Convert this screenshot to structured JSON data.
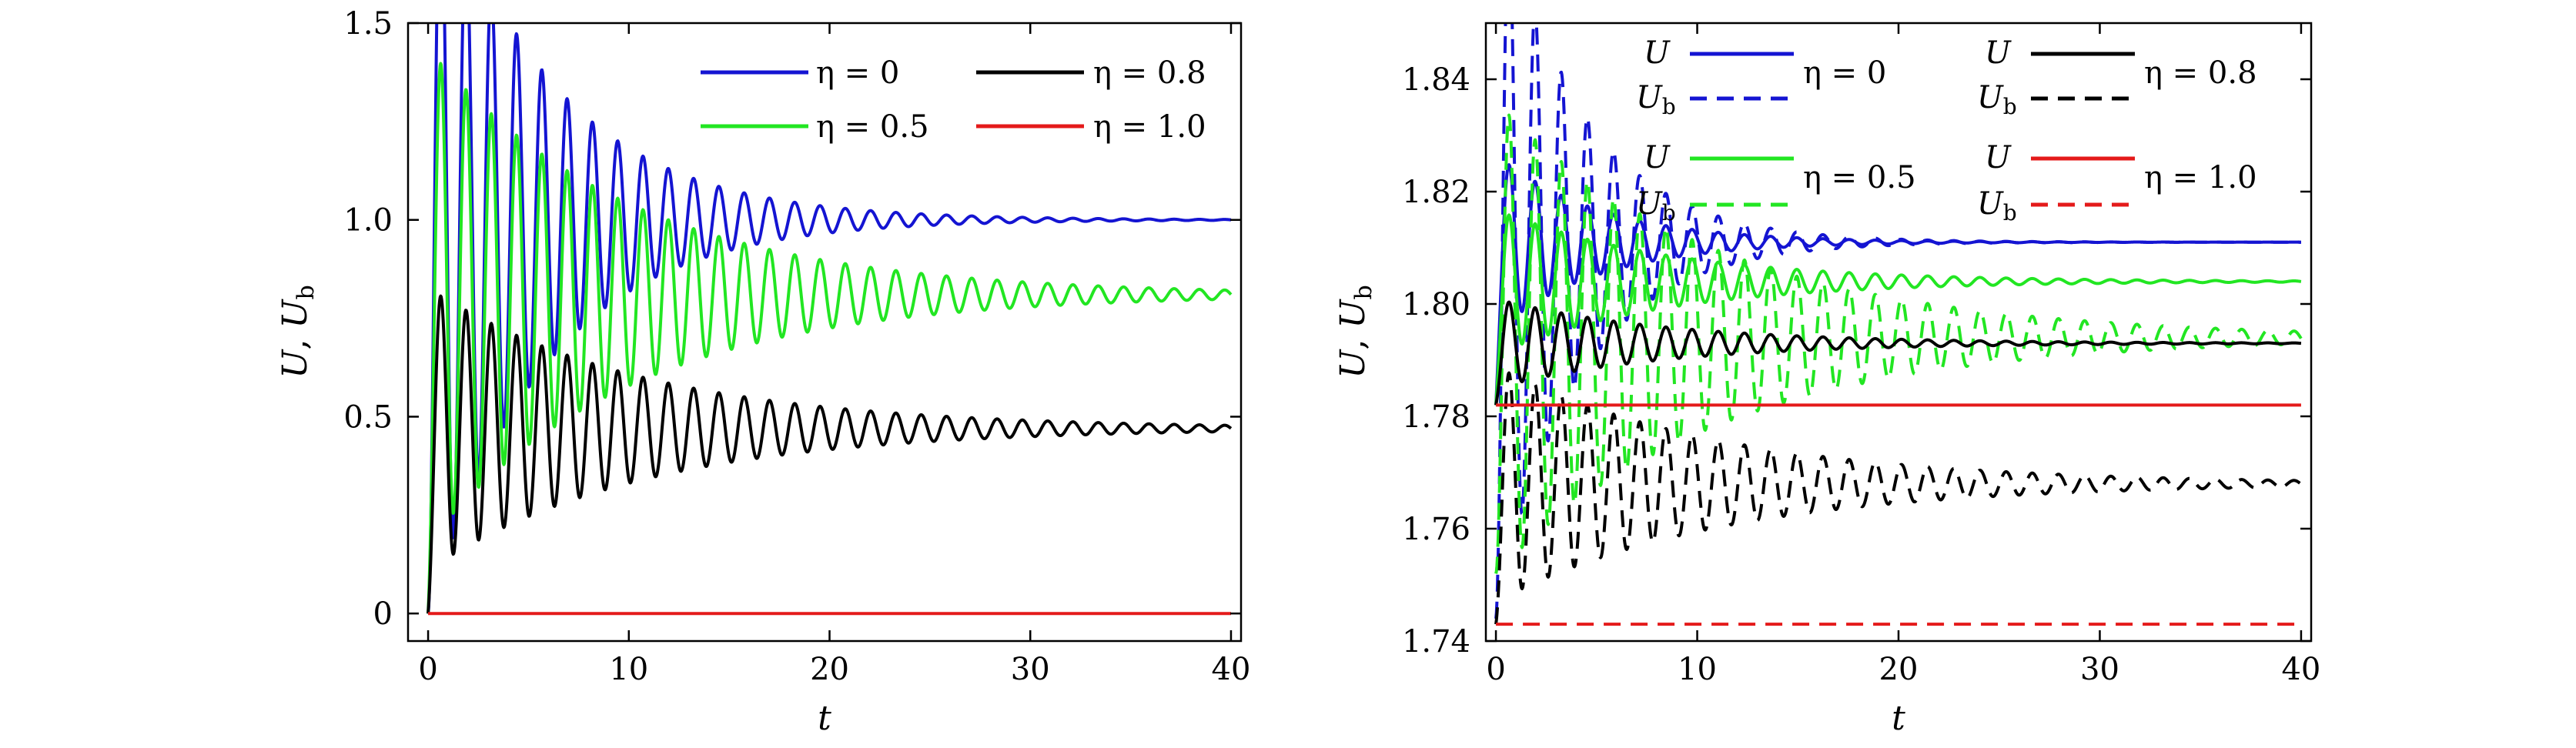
{
  "chart_data": [
    {
      "type": "line",
      "xlabel": "t",
      "ylabel": "U, U_b",
      "xlim": [
        -1,
        40.5
      ],
      "ylim": [
        -0.07,
        1.5
      ],
      "xticks": [
        "0",
        "10",
        "20",
        "30",
        "40"
      ],
      "yticks": [
        "0",
        "0.5",
        "1.0",
        "1.5"
      ],
      "x_tick_values": [
        0,
        10,
        20,
        30,
        40
      ],
      "y_tick_values": [
        0,
        0.5,
        1.0,
        1.5
      ],
      "legend": {
        "placement": "top-right",
        "columns": 2
      },
      "series": [
        {
          "name": "η = 0",
          "color": "#1414d2",
          "style": "solid",
          "start": 0,
          "final": 1.0,
          "first_min": 0.0,
          "decay": 0.17,
          "period": 1.26
        },
        {
          "name": "η = 0.5",
          "color": "#22e622",
          "style": "solid",
          "start": 0,
          "final": 0.81,
          "first_min": 0.18,
          "decay": 0.1,
          "period": 1.26
        },
        {
          "name": "η = 0.8",
          "color": "#000000",
          "style": "solid",
          "start": 0,
          "final": 0.47,
          "first_min": 0.11,
          "decay": 0.095,
          "period": 1.26
        },
        {
          "name": "η = 1.0",
          "color": "#e41a1a",
          "style": "solid",
          "start": 0,
          "final": 0.0,
          "first_min": 0.0,
          "decay": 0.2,
          "period": 1.26
        }
      ]
    },
    {
      "type": "line",
      "xlabel": "t",
      "ylabel": "U, U_b",
      "xlim": [
        -0.5,
        40.5
      ],
      "ylim": [
        1.74,
        1.85
      ],
      "xticks": [
        "0",
        "10",
        "20",
        "30",
        "40"
      ],
      "yticks": [
        "1.74",
        "1.76",
        "1.78",
        "1.80",
        "1.82",
        "1.84"
      ],
      "x_tick_values": [
        0,
        10,
        20,
        30,
        40
      ],
      "y_tick_values": [
        1.74,
        1.76,
        1.78,
        1.8,
        1.82,
        1.84
      ],
      "legend": {
        "placement": "top-right",
        "columns": 2
      },
      "series": [
        {
          "name": "U, η = 0",
          "color": "#1414d2",
          "style": "solid",
          "start": 1.782,
          "final": 1.811,
          "first_min": 1.795,
          "decay": 0.2,
          "period": 1.3
        },
        {
          "name": "U_b, η = 0",
          "color": "#1414d2",
          "style": "dashed",
          "start": 1.744,
          "final": 1.811,
          "first_min": 1.745,
          "decay": 0.24,
          "period": 1.3
        },
        {
          "name": "U, η = 0.5",
          "color": "#22e622",
          "style": "solid",
          "start": 1.782,
          "final": 1.804,
          "first_min": 1.791,
          "decay": 0.12,
          "period": 1.3
        },
        {
          "name": "U_b, η = 0.5",
          "color": "#22e622",
          "style": "dashed",
          "start": 1.752,
          "final": 1.794,
          "first_min": 1.752,
          "decay": 0.09,
          "period": 1.3
        },
        {
          "name": "U, η = 0.8",
          "color": "#000000",
          "style": "solid",
          "start": 1.782,
          "final": 1.793,
          "first_min": 1.785,
          "decay": 0.12,
          "period": 1.3
        },
        {
          "name": "U_b, η = 0.8",
          "color": "#000000",
          "style": "dashed",
          "start": 1.743,
          "final": 1.768,
          "first_min": 1.747,
          "decay": 0.09,
          "period": 1.3
        },
        {
          "name": "U, η = 1.0",
          "color": "#e41a1a",
          "style": "solid",
          "start": 1.782,
          "final": 1.782,
          "first_min": 1.782,
          "decay": 0.2,
          "period": 1.3
        },
        {
          "name": "U_b, η = 1.0",
          "color": "#e41a1a",
          "style": "dashed",
          "start": 1.743,
          "final": 1.743,
          "first_min": 1.743,
          "decay": 0.2,
          "period": 1.3
        }
      ]
    }
  ],
  "legend_left": {
    "e0": "η = 0",
    "e5": "η = 0.5",
    "e8": "η = 0.8",
    "e10": "η = 1.0"
  },
  "legend_right": {
    "u": "U",
    "ub_main": "U",
    "ub_sub": "b",
    "e0": "η = 0",
    "e5": "η = 0.5",
    "e8": "η = 0.8",
    "e10": "η = 1.0"
  },
  "axis_labels": {
    "t": "t",
    "y_u": "U",
    "y_sep": ", ",
    "y_ub": "U",
    "y_sub": "b"
  }
}
